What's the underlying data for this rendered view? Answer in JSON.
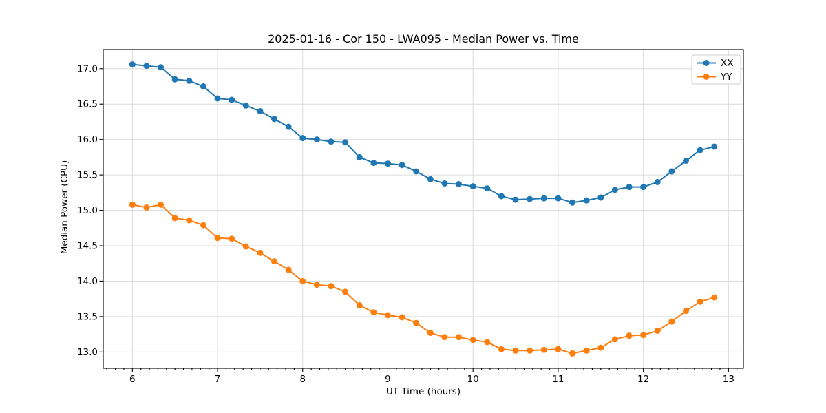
{
  "chart_data": {
    "type": "line",
    "title": "2025-01-16 - Cor 150 - LWA095 - Median Power vs. Time",
    "xlabel": "UT Time (hours)",
    "ylabel": "Median Power (CPU)",
    "grid": true,
    "legend_position": "upper right",
    "marker": "o",
    "xlim": [
      5.658,
      13.175
    ],
    "ylim": [
      12.77,
      17.27
    ],
    "x_ticks": [
      6,
      7,
      8,
      9,
      10,
      11,
      12,
      13
    ],
    "x_tick_labels": [
      "6",
      "7",
      "8",
      "9",
      "10",
      "11",
      "12",
      "13"
    ],
    "x_minor_tick_step": 0.1,
    "y_ticks": [
      13.0,
      13.5,
      14.0,
      14.5,
      15.0,
      15.5,
      16.0,
      16.5,
      17.0
    ],
    "y_tick_labels": [
      "13.0",
      "13.5",
      "14.0",
      "14.5",
      "15.0",
      "15.5",
      "16.0",
      "16.5",
      "17.0"
    ],
    "x": [
      6.0,
      6.1667,
      6.3333,
      6.5,
      6.6667,
      6.8333,
      7.0,
      7.1667,
      7.3333,
      7.5,
      7.6667,
      7.8333,
      8.0,
      8.1667,
      8.3333,
      8.5,
      8.6667,
      8.8333,
      9.0,
      9.1667,
      9.3333,
      9.5,
      9.6667,
      9.8333,
      10.0,
      10.1667,
      10.3333,
      10.5,
      10.6667,
      10.8333,
      11.0,
      11.1667,
      11.3333,
      11.5,
      11.6667,
      11.8333,
      12.0,
      12.1667,
      12.3333,
      12.5,
      12.6667,
      12.8333
    ],
    "series": [
      {
        "name": "XX",
        "color": "#1f77b4",
        "values": [
          17.06,
          17.04,
          17.02,
          16.85,
          16.83,
          16.75,
          16.58,
          16.56,
          16.48,
          16.4,
          16.29,
          16.18,
          16.02,
          16.0,
          15.97,
          15.96,
          15.75,
          15.67,
          15.66,
          15.64,
          15.55,
          15.44,
          15.38,
          15.37,
          15.34,
          15.31,
          15.2,
          15.15,
          15.16,
          15.17,
          15.17,
          15.11,
          15.14,
          15.18,
          15.29,
          15.33,
          15.33,
          15.4,
          15.55,
          15.7,
          15.85,
          15.9
        ]
      },
      {
        "name": "YY",
        "color": "#ff7f0e",
        "values": [
          15.08,
          15.04,
          15.08,
          14.89,
          14.86,
          14.79,
          14.61,
          14.6,
          14.49,
          14.4,
          14.28,
          14.16,
          14.0,
          13.95,
          13.93,
          13.85,
          13.66,
          13.56,
          13.52,
          13.49,
          13.41,
          13.27,
          13.21,
          13.21,
          13.17,
          13.14,
          13.04,
          13.02,
          13.02,
          13.03,
          13.04,
          12.98,
          13.02,
          13.06,
          13.18,
          13.23,
          13.24,
          13.3,
          13.43,
          13.58,
          13.71,
          13.77
        ]
      }
    ]
  }
}
